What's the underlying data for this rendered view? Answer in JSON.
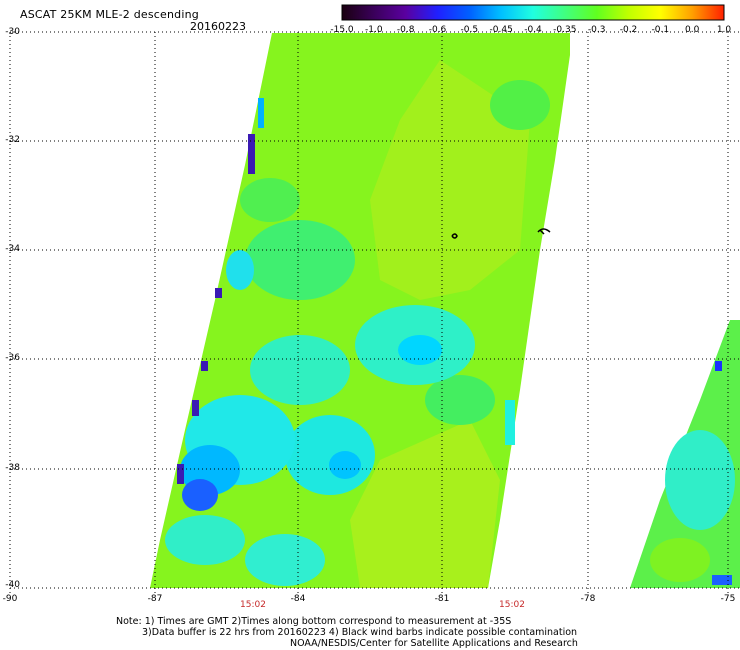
{
  "header": {
    "title": "ASCAT 25KM MLE-2 descending",
    "date": "20160223"
  },
  "colorbar": {
    "ticks": [
      "-15.0",
      "-1.0",
      "-0.8",
      "-0.6",
      "-0.5",
      "-0.45",
      "-0.4",
      "-0.35",
      "-0.3",
      "-0.2",
      "-0.1",
      "0.0",
      "1.0"
    ],
    "colors": [
      "#1a0010",
      "#3a005a",
      "#5a00a0",
      "#2020ff",
      "#0060ff",
      "#00c0ff",
      "#20ffe0",
      "#40ff80",
      "#60ff20",
      "#c0ff00",
      "#ffff00",
      "#ffa000",
      "#ff2000"
    ]
  },
  "map": {
    "lat_labels": [
      "-30",
      "-32",
      "-34",
      "-36",
      "-38",
      "-40"
    ],
    "lon_labels": [
      "-90",
      "-87",
      "-84",
      "-81",
      "-78",
      "-75"
    ],
    "time_labels": [
      "15:02",
      "15:02"
    ],
    "swath_colors": {
      "green": "#7cf21a",
      "yellow_green": "#a8f21a",
      "light_green": "#40ff60",
      "cyan": "#20f0e0",
      "aqua": "#00e0ff",
      "blue": "#1a5aff",
      "dark_blue": "#3a1ab4"
    }
  },
  "notes": {
    "line1": "Note: 1) Times are GMT 2)Times along bottom correspond to measurement at -35S",
    "line2": "3)Data buffer is 22 hrs from 20160223 4) Black wind barbs indicate possible contamination",
    "line3": "NOAA/NESDIS/Center for Satellite Applications and Research"
  }
}
